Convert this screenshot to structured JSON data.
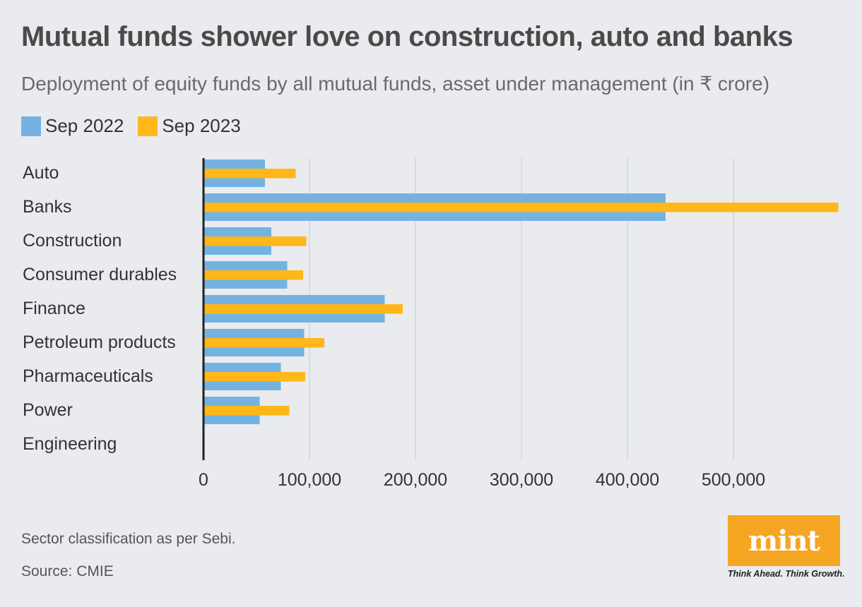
{
  "header": {
    "title": "Mutual funds shower love on construction, auto and banks",
    "subtitle": "Deployment of equity funds by all mutual funds, asset under management (in ₹ crore)"
  },
  "legend": {
    "items": [
      {
        "label": "Sep 2022",
        "color": "#74b3e1"
      },
      {
        "label": "Sep 2023",
        "color": "#ffb71a"
      }
    ]
  },
  "footer": {
    "note": "Sector classification as per Sebi.",
    "source": "Source: CMIE"
  },
  "branding": {
    "logo_text": "mint",
    "tagline": "Think Ahead. Think Growth.",
    "logo_color": "#f5a623"
  },
  "chart_data": {
    "type": "bar",
    "orientation": "horizontal",
    "title": "Mutual funds shower love on construction, auto and banks",
    "subtitle": "Deployment of equity funds by all mutual funds, asset under management (in ₹ crore)",
    "categories": [
      "Auto",
      "Banks",
      "Construction",
      "Consumer durables",
      "Finance",
      "Petroleum products",
      "Pharmaceuticals",
      "Power",
      "Engineering"
    ],
    "series": [
      {
        "name": "Sep 2022",
        "color": "#74b3e1",
        "values": [
          58000,
          436000,
          64000,
          79000,
          171000,
          95000,
          73000,
          53000,
          0
        ]
      },
      {
        "name": "Sep 2023",
        "color": "#ffb71a",
        "values": [
          87000,
          599000,
          97000,
          94000,
          188000,
          114000,
          96000,
          81000,
          0
        ]
      }
    ],
    "xlim": [
      0,
      600000
    ],
    "xticks": [
      0,
      100000,
      200000,
      300000,
      400000,
      500000
    ],
    "xtick_labels": [
      "0",
      "100,000",
      "200,000",
      "300,000",
      "400,000",
      "500,000"
    ],
    "grid": true,
    "legend_position": "top-left"
  }
}
